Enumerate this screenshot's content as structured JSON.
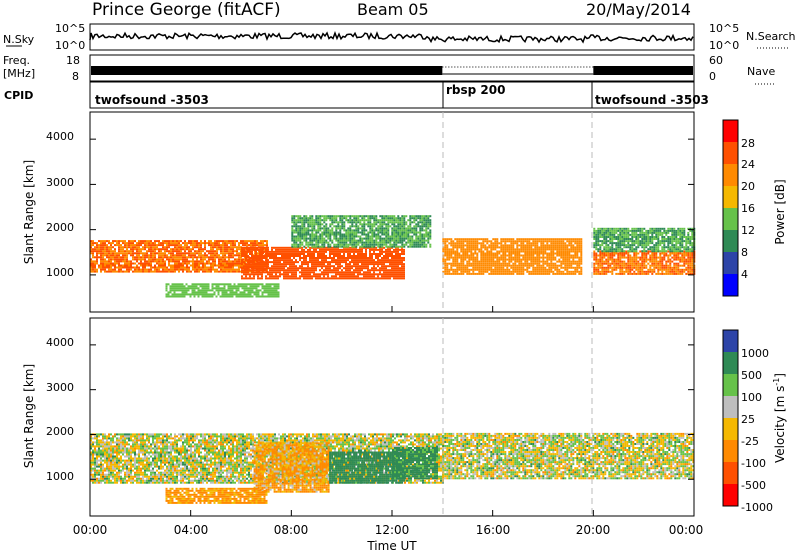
{
  "header": {
    "station": "Prince George (fitACF)",
    "beam": "Beam 05",
    "date": "20/May/2014"
  },
  "noise_panel": {
    "left_label": "N.Sky",
    "left_ticks": [
      "10^5",
      "10^0"
    ],
    "right_ticks": [
      "10^5",
      "10^0"
    ],
    "right_label": "N.Search"
  },
  "freq_panel": {
    "left_label_1": "Freq.",
    "left_label_2": "[MHz]",
    "left_ticks": [
      "18",
      "8"
    ],
    "right_ticks": [
      "60",
      "0"
    ],
    "right_label": "Nave"
  },
  "cpid_panel": {
    "label": "CPID",
    "segments": [
      {
        "start": 0,
        "end": 14,
        "name": "twofsound -3503"
      },
      {
        "start": 14,
        "end": 20,
        "name": "rbsp 200"
      },
      {
        "start": 20,
        "end": 24,
        "name": "twofsound -3503"
      }
    ]
  },
  "power_panel": {
    "ylabel": "Slant Range [km]",
    "yticks": [
      "4000",
      "3000",
      "2000",
      "1000"
    ],
    "colorbar_label": "Power [dB]",
    "colorbar_ticks": [
      "28",
      "24",
      "20",
      "16",
      "12",
      "8",
      "4"
    ],
    "colors": [
      "#0000ff",
      "#2d44a8",
      "#2f8a55",
      "#66c24a",
      "#f5b800",
      "#ff8a00",
      "#ff5000",
      "#ff0000"
    ]
  },
  "velocity_panel": {
    "ylabel": "Slant Range [km]",
    "yticks": [
      "4000",
      "3000",
      "2000",
      "1000"
    ],
    "colorbar_label": "Velocity [m s",
    "colorbar_sup": "-1",
    "colorbar_tail": "]",
    "colorbar_ticks": [
      "1000",
      "500",
      "100",
      "25",
      "-25",
      "-100",
      "-500",
      "-1000"
    ],
    "colors": [
      "#2d44a8",
      "#2f8a55",
      "#66c24a",
      "#bebebe",
      "#f5b800",
      "#ff8a00",
      "#ff5000",
      "#ff0000"
    ]
  },
  "xaxis": {
    "ticks": [
      "00:00",
      "04:00",
      "08:00",
      "12:00",
      "16:00",
      "20:00",
      "00:00"
    ],
    "label": "Time UT"
  },
  "chart_data": [
    {
      "type": "heatmap",
      "title": "Prince George (fitACF)",
      "subtitle": "Beam 05",
      "date": "20/May/2014",
      "xlabel": "Time UT",
      "ylabel": "Slant Range [km]",
      "xlim": [
        0,
        24
      ],
      "ylim": [
        180,
        4600
      ],
      "colorbar": "Power [dB]",
      "clim": [
        0,
        30
      ],
      "bands": [
        {
          "t0": 0,
          "t1": 7,
          "r0": 1050,
          "r1": 1750,
          "value": 24
        },
        {
          "t0": 3,
          "t1": 7.5,
          "r0": 500,
          "r1": 800,
          "value": 14
        },
        {
          "t0": 6,
          "t1": 12.5,
          "r0": 900,
          "r1": 1600,
          "value": 26
        },
        {
          "t0": 8,
          "t1": 13.5,
          "r0": 1600,
          "r1": 2300,
          "value": 12
        },
        {
          "t0": 14,
          "t1": 19.5,
          "r0": 1000,
          "r1": 1800,
          "value": 22
        },
        {
          "t0": 20,
          "t1": 24,
          "r0": 1000,
          "r1": 1500,
          "value": 24
        },
        {
          "t0": 20,
          "t1": 24,
          "r0": 1500,
          "r1": 2000,
          "value": 12
        }
      ]
    },
    {
      "type": "heatmap",
      "xlabel": "Time UT",
      "ylabel": "Slant Range [km]",
      "xlim": [
        0,
        24
      ],
      "ylim": [
        180,
        4600
      ],
      "colorbar": "Velocity [m s-1]",
      "clim": [
        -1000,
        1000
      ],
      "bands": [
        {
          "t0": 0,
          "t1": 14,
          "r0": 900,
          "r1": 2000,
          "value": 0
        },
        {
          "t0": 14,
          "t1": 24,
          "r0": 1000,
          "r1": 2000,
          "value": 0
        },
        {
          "t0": 6.5,
          "t1": 9.5,
          "r0": 700,
          "r1": 1800,
          "value": -120
        },
        {
          "t0": 9.5,
          "t1": 12.5,
          "r0": 900,
          "r1": 1600,
          "value": 300
        },
        {
          "t0": 12,
          "t1": 13.8,
          "r0": 1000,
          "r1": 1700,
          "value": 180
        },
        {
          "t0": 3,
          "t1": 7,
          "r0": 450,
          "r1": 800,
          "value": -150
        }
      ]
    }
  ]
}
